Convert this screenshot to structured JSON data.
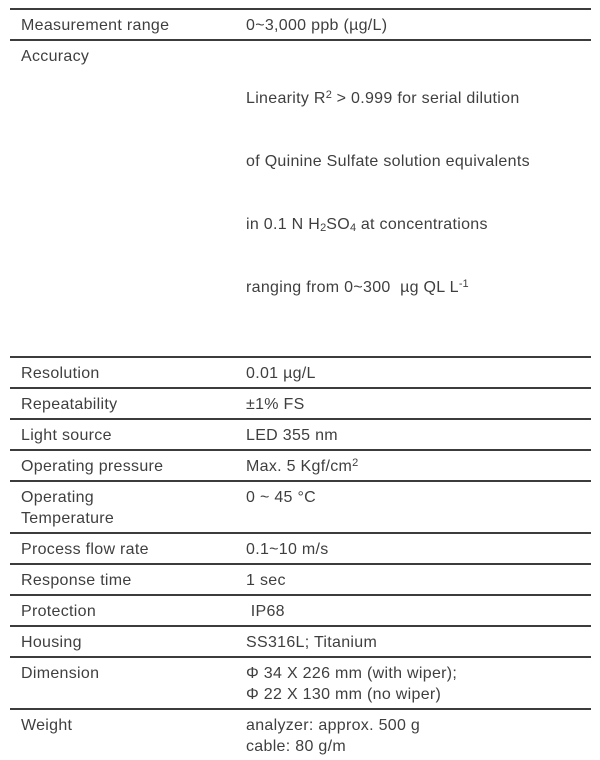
{
  "page": {
    "background_color": "#ffffff",
    "text_color": "#3f3f3f",
    "line_color": "#3c3c3c"
  },
  "table": {
    "name": "product-specification-table",
    "rows": [
      {
        "label": "Measurement range",
        "value": "0~3,000 ppb (µg/L)"
      },
      {
        "label": "Accuracy",
        "value": {
          "l1a": "Linearity R",
          "l1sup": "2",
          "l1b": " > 0.999 for serial dilution",
          "l2": "of Quinine Sulfate solution equivalents",
          "l3a": "in 0.1 N H",
          "l3sub1": "2",
          "l3b": "SO",
          "l3sub2": "4",
          "l3c": " at concentrations",
          "l4a": "ranging from 0~300  µg QL L",
          "l4sup": "-1"
        }
      },
      {
        "label": "Resolution",
        "value": "0.01 µg/L"
      },
      {
        "label": "Repeatability",
        "value": "±1% FS"
      },
      {
        "label": "Light source",
        "value": "LED 355 nm"
      },
      {
        "label": "Operating pressure",
        "value": {
          "a": "Max. 5 Kgf/cm",
          "sup": "2"
        }
      },
      {
        "label": "Operating\nTemperature",
        "value": "0 ~ 45 °C"
      },
      {
        "label": "Process flow rate",
        "value": "0.1~10 m/s"
      },
      {
        "label": "Response time",
        "value": "1 sec"
      },
      {
        "label": "Protection",
        "value": " IP68"
      },
      {
        "label": "Housing",
        "value": "SS316L; Titanium"
      },
      {
        "label": "Dimension",
        "value": "Φ 34 X 226 mm (with wiper);\nΦ 22 X 130 mm (no wiper)"
      },
      {
        "label": "Weight",
        "value": "analyzer: approx. 500 g\ncable: 80 g/m"
      }
    ]
  }
}
